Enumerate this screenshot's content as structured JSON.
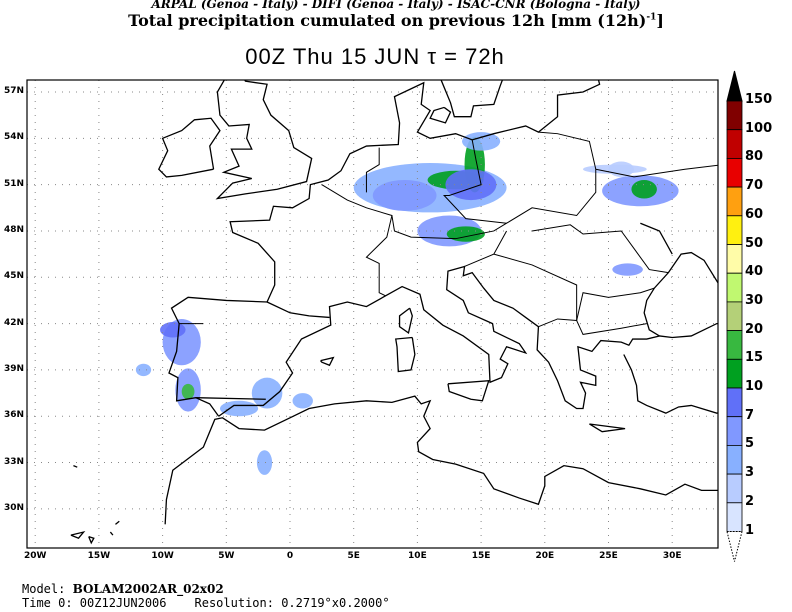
{
  "header": {
    "institutions": "ARPAL (Genoa - Italy)  -  DIFI (Genoa - Italy)  -  ISAC-CNR (Bologna - Italy)",
    "title": "Total precipitation cumulated on previous 12h [mm (12h)",
    "title_sup": "-1",
    "title_end": "]",
    "valid_time": "00Z Thu 15 JUN  τ = 72h"
  },
  "map": {
    "lat_labels": [
      "57N",
      "54N",
      "51N",
      "48N",
      "45N",
      "42N",
      "39N",
      "36N",
      "33N",
      "30N"
    ],
    "lat_values": [
      57,
      54,
      51,
      48,
      45,
      42,
      39,
      36,
      33,
      30
    ],
    "lon_labels": [
      "20W",
      "15W",
      "10W",
      "5W",
      "0",
      "5E",
      "10E",
      "15E",
      "20E",
      "25E",
      "30E"
    ],
    "lon_values": [
      -20,
      -15,
      -10,
      -5,
      0,
      5,
      10,
      15,
      20,
      25,
      30
    ],
    "grid": "dotted",
    "precip_areas": [
      {
        "region": "Germany-Czech",
        "lon": 12,
        "lat": 51,
        "level": 5
      },
      {
        "region": "Germany core",
        "lon": 13,
        "lat": 51.3,
        "level": 15
      },
      {
        "region": "Poland border",
        "lon": 14.5,
        "lat": 52.5,
        "level": 15
      },
      {
        "region": "Bavaria",
        "lon": 13,
        "lat": 47.8,
        "level": 15
      },
      {
        "region": "Ukraine",
        "lon": 27.5,
        "lat": 50.5,
        "level": 7
      },
      {
        "region": "Portugal north",
        "lon": -8.5,
        "lat": 41,
        "level": 7
      },
      {
        "region": "Portugal south",
        "lon": -8,
        "lat": 37.8,
        "level": 15
      },
      {
        "region": "Spain south",
        "lon": -2,
        "lat": 37.5,
        "level": 3
      }
    ]
  },
  "colorbar": {
    "labels": [
      "150",
      "100",
      "80",
      "70",
      "60",
      "50",
      "40",
      "30",
      "20",
      "15",
      "10",
      "7",
      "5",
      "3",
      "2",
      "1"
    ],
    "colors": [
      "#800000",
      "#c00000",
      "#e80000",
      "#ffa010",
      "#fff010",
      "#fffca8",
      "#c0f870",
      "#b4d078",
      "#38b840",
      "#00a020",
      "#6070f8",
      "#8098ff",
      "#88b0ff",
      "#b8ccff",
      "#d8e4ff"
    ],
    "over_color": "#000000",
    "under_color": "#ffffff"
  },
  "footer": {
    "model_label": "Model: ",
    "model": "BOLAM2002AR_02x02",
    "time0": "Time 0: 00Z12JUN2006",
    "resolution": "Resolution: 0.2719°x0.2000°"
  }
}
